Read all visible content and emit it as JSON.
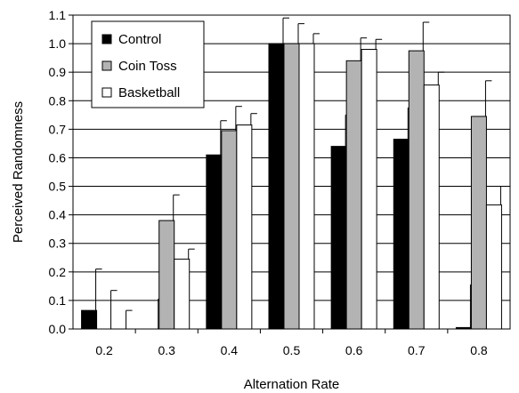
{
  "chart_data": {
    "type": "bar",
    "xlabel": "Alternation Rate",
    "ylabel": "Perceived Randomness",
    "ylim": [
      0,
      1.1
    ],
    "yticks": [
      "0.0",
      "0.1",
      "0.2",
      "0.3",
      "0.4",
      "0.5",
      "0.6",
      "0.7",
      "0.8",
      "0.9",
      "1.0",
      "1.1"
    ],
    "categories": [
      "0.2",
      "0.3",
      "0.4",
      "0.5",
      "0.6",
      "0.7",
      "0.8"
    ],
    "grid": "horizontal",
    "legend_position": "top-left",
    "series": [
      {
        "name": "Control",
        "color": "#000000",
        "values": [
          0.065,
          0.0,
          0.61,
          1.0,
          0.64,
          0.665,
          0.005
        ],
        "error_upper": [
          0.145,
          0.105,
          0.12,
          0.09,
          0.11,
          0.11,
          0.15
        ]
      },
      {
        "name": "Coin Toss",
        "color": "#b3b3b3",
        "values": [
          0.0,
          0.38,
          0.695,
          1.0,
          0.94,
          0.975,
          0.745
        ],
        "error_upper": [
          0.135,
          0.09,
          0.085,
          0.07,
          0.08,
          0.1,
          0.125
        ]
      },
      {
        "name": "Basketball",
        "color": "#ffffff",
        "values": [
          0.0,
          0.245,
          0.715,
          1.0,
          0.98,
          0.855,
          0.435
        ],
        "error_upper": [
          0.065,
          0.035,
          0.04,
          0.035,
          0.035,
          0.045,
          0.065
        ]
      }
    ]
  }
}
